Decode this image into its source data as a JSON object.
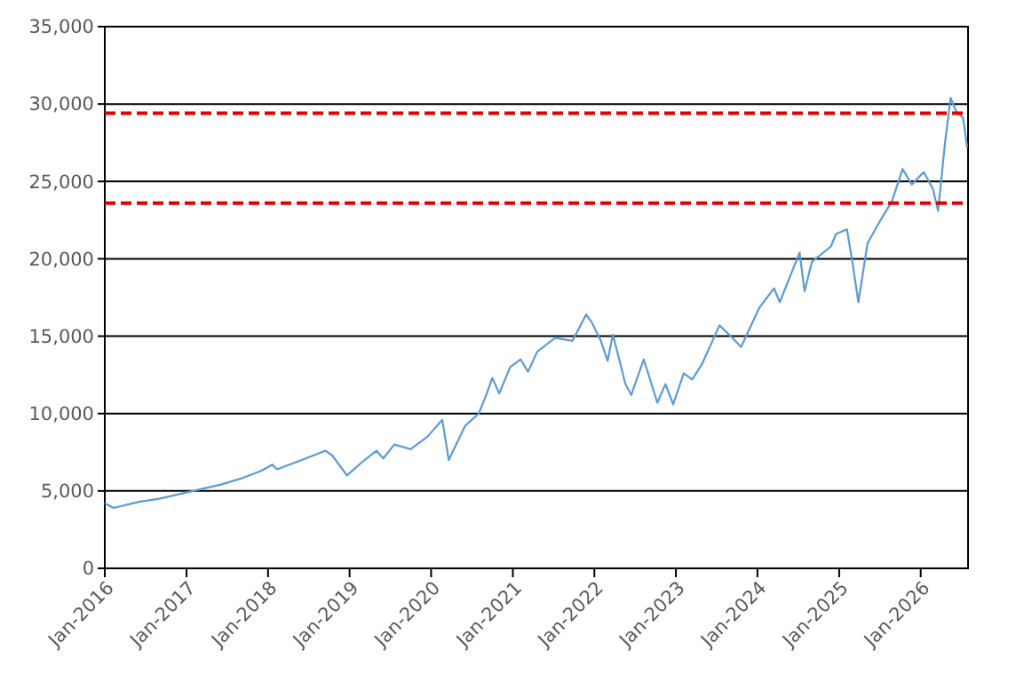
{
  "chart_data": {
    "type": "line",
    "x": [
      "2016-01-01",
      "2016-02-10",
      "2016-06-01",
      "2016-09-01",
      "2016-12-01",
      "2017-03-01",
      "2017-06-01",
      "2017-09-01",
      "2017-12-01",
      "2018-01-20",
      "2018-02-10",
      "2018-06-01",
      "2018-09-15",
      "2018-10-15",
      "2018-12-20",
      "2019-03-01",
      "2019-05-01",
      "2019-06-01",
      "2019-07-20",
      "2019-10-01",
      "2019-12-15",
      "2020-02-20",
      "2020-03-20",
      "2020-06-01",
      "2020-08-01",
      "2020-09-01",
      "2020-10-01",
      "2020-11-01",
      "2020-12-20",
      "2021-02-05",
      "2021-03-10",
      "2021-04-20",
      "2021-07-10",
      "2021-09-25",
      "2021-11-25",
      "2021-12-20",
      "2022-01-30",
      "2022-03-01",
      "2022-03-25",
      "2022-05-20",
      "2022-06-15",
      "2022-08-10",
      "2022-10-10",
      "2022-11-15",
      "2022-12-20",
      "2023-02-05",
      "2023-03-15",
      "2023-04-28",
      "2023-07-15",
      "2023-09-10",
      "2023-10-20",
      "2024-01-08",
      "2024-03-15",
      "2024-04-10",
      "2024-07-08",
      "2024-07-30",
      "2024-09-01",
      "2024-11-25",
      "2024-12-18",
      "2025-02-05",
      "2025-03-01",
      "2025-03-28",
      "2025-05-08",
      "2025-07-01",
      "2025-08-25",
      "2025-10-12",
      "2025-11-22",
      "2026-01-15",
      "2026-02-25",
      "2026-03-20",
      "2026-04-20",
      "2026-05-15",
      "2026-06-10",
      "2026-07-10",
      "2026-07-28"
    ],
    "values": [
      4200,
      3900,
      4300,
      4500,
      4800,
      5100,
      5400,
      5800,
      6300,
      6700,
      6400,
      7000,
      7600,
      7300,
      6000,
      6900,
      7600,
      7100,
      8000,
      7700,
      8500,
      9600,
      7000,
      9200,
      10000,
      11100,
      12300,
      11300,
      13000,
      13500,
      12700,
      14000,
      14900,
      14700,
      16400,
      15900,
      14700,
      13400,
      15100,
      11900,
      11200,
      13500,
      10700,
      11900,
      10600,
      12600,
      12200,
      13200,
      15700,
      14900,
      14300,
      16800,
      18100,
      17200,
      20400,
      17900,
      19800,
      20800,
      21600,
      21900,
      19800,
      17200,
      21000,
      22400,
      23700,
      25800,
      24800,
      25600,
      24500,
      23100,
      27500,
      30400,
      29500,
      29100,
      27200
    ],
    "color": "#5b9bd5",
    "xlim": [
      "2016-01-01",
      "2026-08-01"
    ],
    "xticks": [
      {
        "value": "2016-01-01",
        "label": "Jan-2016"
      },
      {
        "value": "2017-01-01",
        "label": "Jan-2017"
      },
      {
        "value": "2018-01-01",
        "label": "Jan-2018"
      },
      {
        "value": "2019-01-01",
        "label": "Jan-2019"
      },
      {
        "value": "2020-01-01",
        "label": "Jan-2020"
      },
      {
        "value": "2021-01-01",
        "label": "Jan-2021"
      },
      {
        "value": "2022-01-01",
        "label": "Jan-2022"
      },
      {
        "value": "2023-01-01",
        "label": "Jan-2023"
      },
      {
        "value": "2024-01-01",
        "label": "Jan-2024"
      },
      {
        "value": "2025-01-01",
        "label": "Jan-2025"
      },
      {
        "value": "2026-01-01",
        "label": "Jan-2026"
      }
    ],
    "ylim": [
      0,
      35000
    ],
    "yticks": [
      {
        "value": 0,
        "label": "0"
      },
      {
        "value": 5000,
        "label": "5,000"
      },
      {
        "value": 10000,
        "label": "10,000"
      },
      {
        "value": 15000,
        "label": "15,000"
      },
      {
        "value": 20000,
        "label": "20,000"
      },
      {
        "value": 25000,
        "label": "25,000"
      },
      {
        "value": 30000,
        "label": "30,000"
      },
      {
        "value": 35000,
        "label": "35,000"
      }
    ],
    "grid": "y",
    "ref_lines": [
      {
        "axis": "y",
        "value": 29400,
        "color": "#e00000",
        "line_style": "dashed"
      },
      {
        "axis": "y",
        "value": 23600,
        "color": "#e00000",
        "line_style": "dashed"
      }
    ]
  }
}
